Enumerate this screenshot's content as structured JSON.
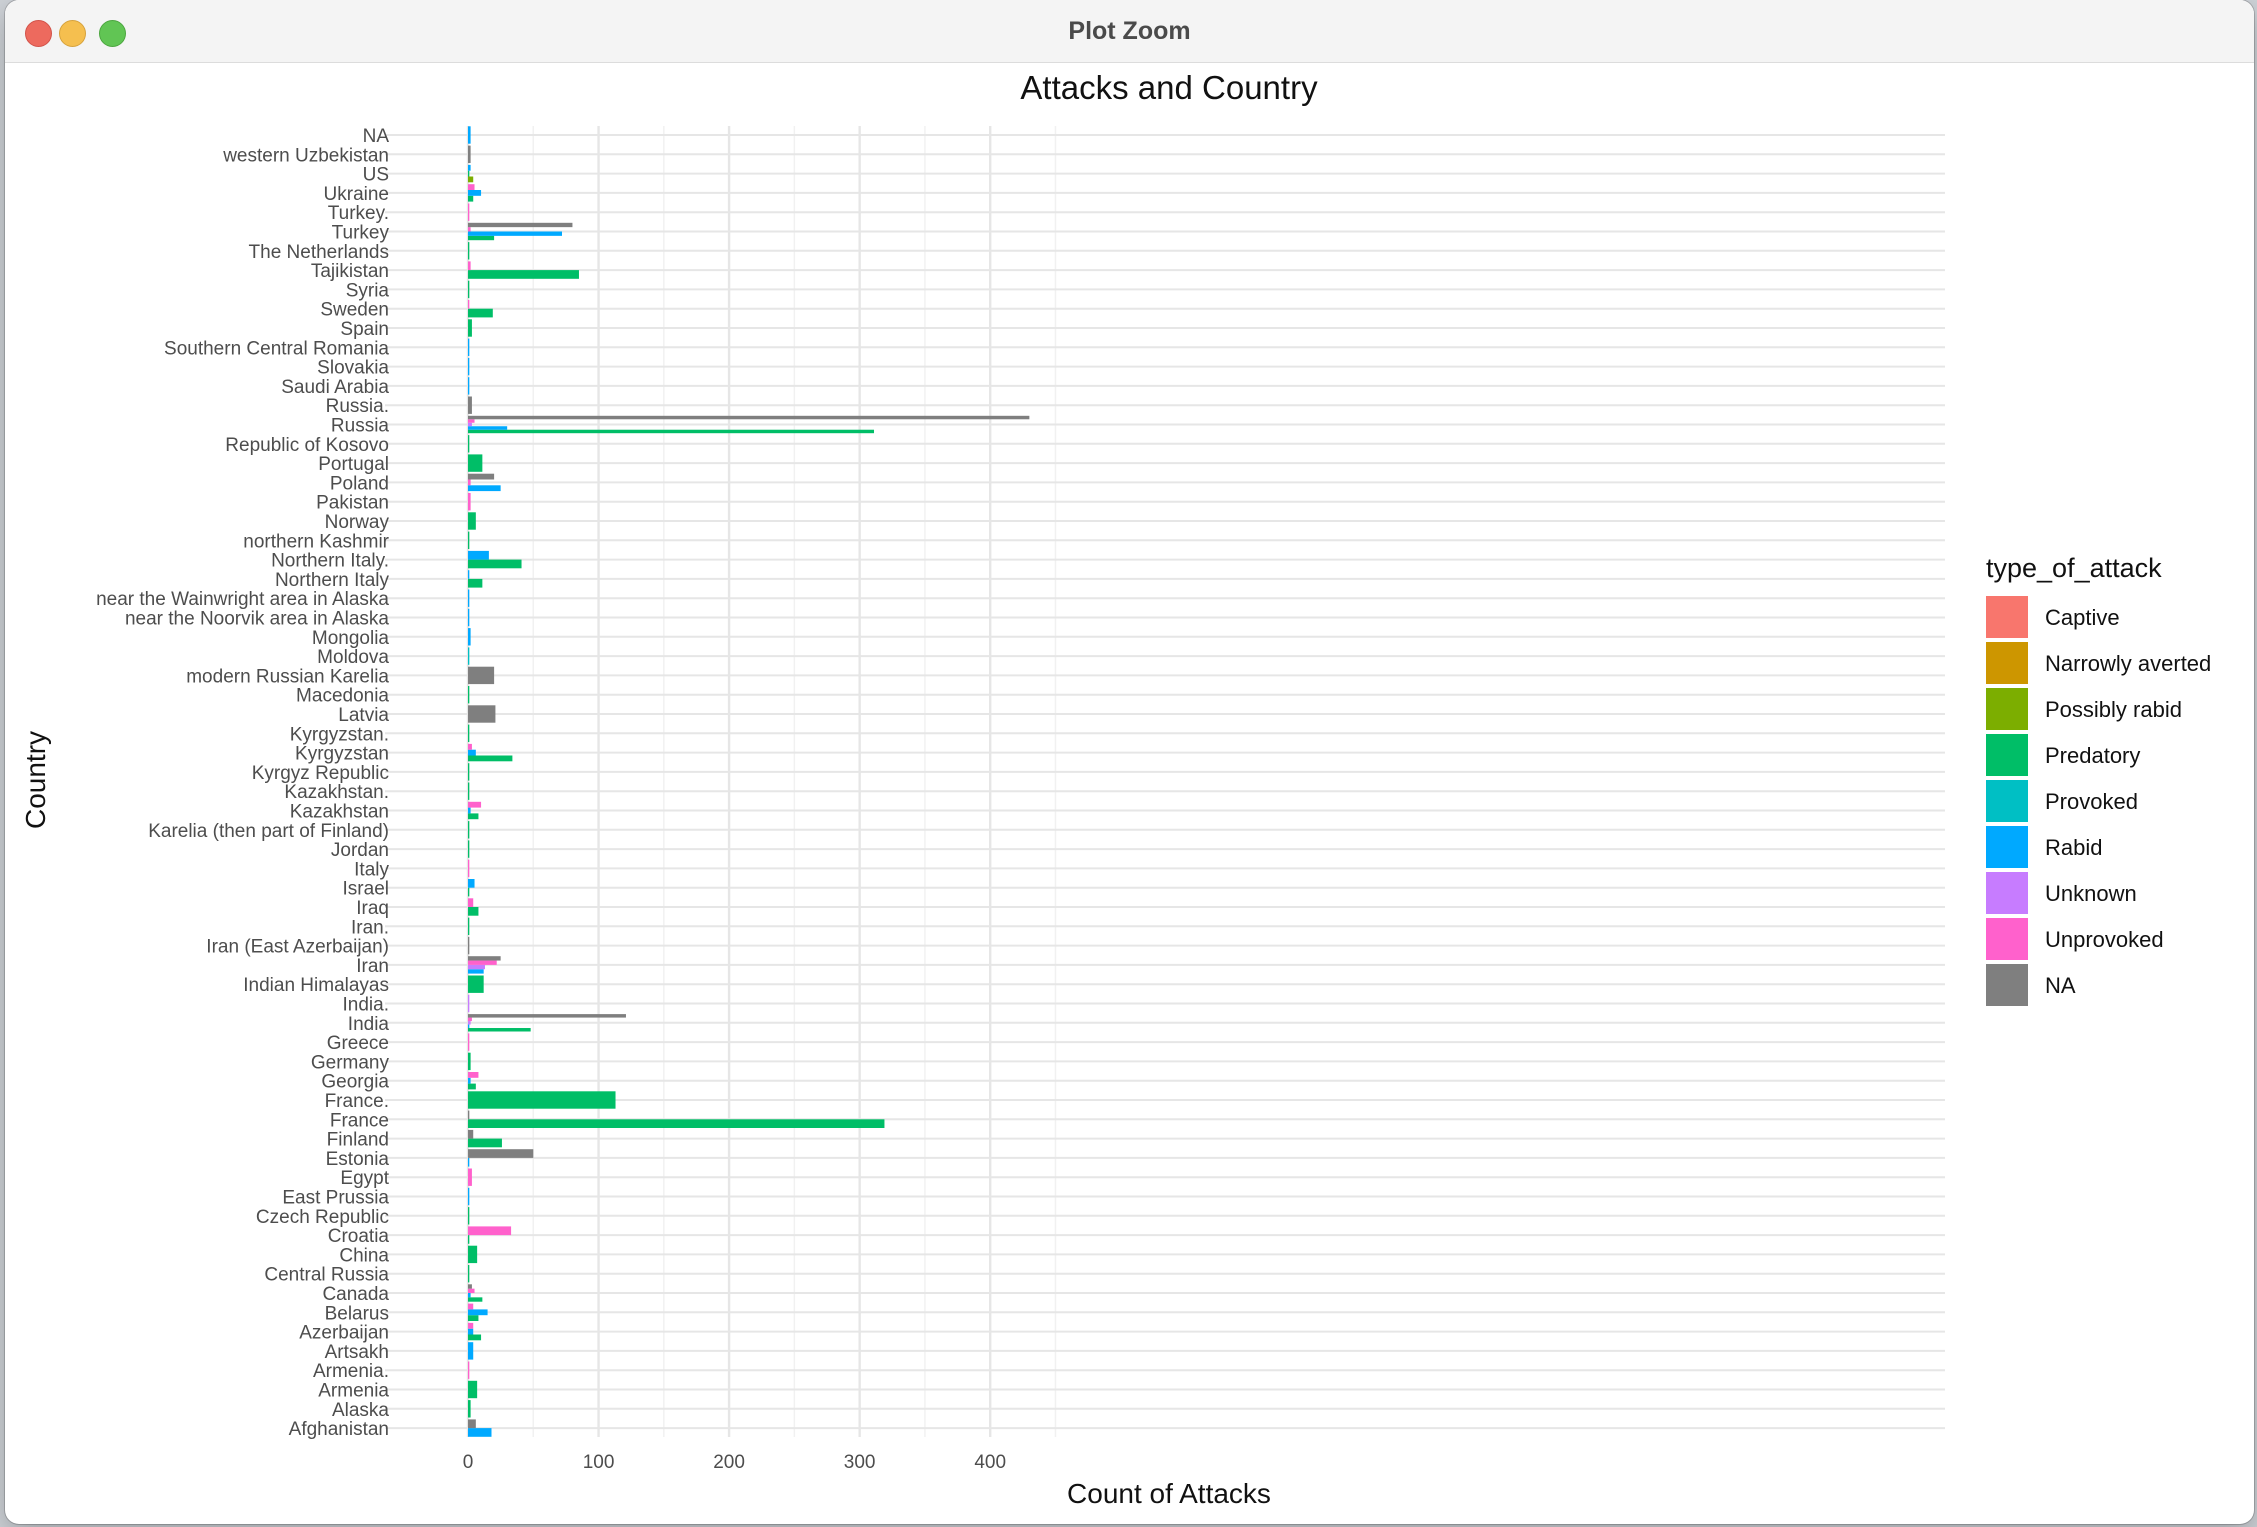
{
  "window": {
    "title": "Plot Zoom"
  },
  "colors": {
    "Captive": "#F8766D",
    "Narrowly averted": "#CD9600",
    "Possibly rabid": "#7CAE00",
    "Predatory": "#00BE67",
    "Provoked": "#00BFC4",
    "Rabid": "#00A9FF",
    "Unknown": "#C77CFF",
    "Unprovoked": "#FF61CC",
    "NA": "#7F7F7F"
  },
  "chart_data": {
    "type": "bar",
    "orientation": "horizontal",
    "position": "dodge",
    "title": "Attacks and Country",
    "xlabel": "Count of Attacks",
    "ylabel": "Country",
    "xlim": [
      0,
      450
    ],
    "xticks": [
      0,
      100,
      200,
      300,
      400
    ],
    "legend_title": "type_of_attack",
    "legend_position": "right",
    "series": [
      "Captive",
      "Narrowly averted",
      "Possibly rabid",
      "Predatory",
      "Provoked",
      "Rabid",
      "Unknown",
      "Unprovoked",
      "NA"
    ],
    "categories": [
      "Afghanistan",
      "Alaska",
      "Armenia",
      "Armenia.",
      "Artsakh",
      "Azerbaijan",
      "Belarus",
      "Canada",
      "Central Russia",
      "China",
      "Croatia",
      "Czech Republic",
      "East Prussia",
      "Egypt",
      "Estonia",
      "Finland",
      "France",
      "France.",
      "Georgia",
      "Germany",
      "Greece",
      "India",
      "India.",
      "Indian Himalayas",
      "Iran",
      "Iran (East Azerbaijan)",
      "Iran.",
      "Iraq",
      "Israel",
      "Italy",
      "Jordan",
      "Karelia (then part of Finland)",
      "Kazakhstan",
      "Kazakhstan.",
      "Kyrgyz Republic",
      "Kyrgyzstan",
      "Kyrgyzstan.",
      "Latvia",
      "Macedonia",
      "modern Russian Karelia",
      "Moldova",
      "Mongolia",
      "near the Noorvik area in Alaska",
      "near the Wainwright area in Alaska",
      "Northern Italy",
      "Northern Italy.",
      "northern Kashmir",
      "Norway",
      "Pakistan",
      "Poland",
      "Portugal",
      "Republic of Kosovo",
      "Russia",
      "Russia.",
      "Saudi Arabia",
      "Slovakia",
      "Southern Central Romania",
      "Spain",
      "Sweden",
      "Syria",
      "Tajikistan",
      "The Netherlands",
      "Turkey",
      "Turkey.",
      "Ukraine",
      "US",
      "western Uzbekistan",
      "NA"
    ],
    "bars": [
      {
        "country": "Afghanistan",
        "type": "Rabid",
        "value": 18
      },
      {
        "country": "Afghanistan",
        "type": "NA",
        "value": 6
      },
      {
        "country": "Alaska",
        "type": "Predatory",
        "value": 2
      },
      {
        "country": "Armenia",
        "type": "Predatory",
        "value": 7
      },
      {
        "country": "Armenia.",
        "type": "Unprovoked",
        "value": 1
      },
      {
        "country": "Artsakh",
        "type": "Rabid",
        "value": 4
      },
      {
        "country": "Azerbaijan",
        "type": "Predatory",
        "value": 10
      },
      {
        "country": "Azerbaijan",
        "type": "Rabid",
        "value": 4
      },
      {
        "country": "Azerbaijan",
        "type": "Unprovoked",
        "value": 4
      },
      {
        "country": "Belarus",
        "type": "Predatory",
        "value": 8
      },
      {
        "country": "Belarus",
        "type": "Rabid",
        "value": 15
      },
      {
        "country": "Belarus",
        "type": "Unprovoked",
        "value": 4
      },
      {
        "country": "Canada",
        "type": "Predatory",
        "value": 11
      },
      {
        "country": "Canada",
        "type": "Rabid",
        "value": 2
      },
      {
        "country": "Canada",
        "type": "Unprovoked",
        "value": 5
      },
      {
        "country": "Canada",
        "type": "NA",
        "value": 3
      },
      {
        "country": "Central Russia",
        "type": "Predatory",
        "value": 1
      },
      {
        "country": "China",
        "type": "Predatory",
        "value": 7
      },
      {
        "country": "Croatia",
        "type": "Predatory",
        "value": 1
      },
      {
        "country": "Croatia",
        "type": "Unprovoked",
        "value": 33
      },
      {
        "country": "Czech Republic",
        "type": "Predatory",
        "value": 1
      },
      {
        "country": "East Prussia",
        "type": "Rabid",
        "value": 1
      },
      {
        "country": "Egypt",
        "type": "Unprovoked",
        "value": 3
      },
      {
        "country": "Estonia",
        "type": "Rabid",
        "value": 1
      },
      {
        "country": "Estonia",
        "type": "NA",
        "value": 50
      },
      {
        "country": "Finland",
        "type": "Predatory",
        "value": 26
      },
      {
        "country": "Finland",
        "type": "NA",
        "value": 4
      },
      {
        "country": "France",
        "type": "Predatory",
        "value": 319
      },
      {
        "country": "France",
        "type": "NA",
        "value": 1
      },
      {
        "country": "France.",
        "type": "Predatory",
        "value": 113
      },
      {
        "country": "Georgia",
        "type": "Predatory",
        "value": 6
      },
      {
        "country": "Georgia",
        "type": "Rabid",
        "value": 2
      },
      {
        "country": "Georgia",
        "type": "Unprovoked",
        "value": 8
      },
      {
        "country": "Germany",
        "type": "Predatory",
        "value": 2
      },
      {
        "country": "Greece",
        "type": "Unprovoked",
        "value": 1
      },
      {
        "country": "India",
        "type": "Predatory",
        "value": 48
      },
      {
        "country": "India",
        "type": "Rabid",
        "value": 1
      },
      {
        "country": "India",
        "type": "Unknown",
        "value": 2
      },
      {
        "country": "India",
        "type": "Unprovoked",
        "value": 3
      },
      {
        "country": "India",
        "type": "NA",
        "value": 121
      },
      {
        "country": "India.",
        "type": "Unknown",
        "value": 1
      },
      {
        "country": "Indian Himalayas",
        "type": "Predatory",
        "value": 12
      },
      {
        "country": "Iran",
        "type": "Rabid",
        "value": 12
      },
      {
        "country": "Iran",
        "type": "Unknown",
        "value": 13
      },
      {
        "country": "Iran",
        "type": "Unprovoked",
        "value": 22
      },
      {
        "country": "Iran",
        "type": "NA",
        "value": 25
      },
      {
        "country": "Iran (East Azerbaijan)",
        "type": "NA",
        "value": 1
      },
      {
        "country": "Iran.",
        "type": "Predatory",
        "value": 1
      },
      {
        "country": "Iraq",
        "type": "Predatory",
        "value": 8
      },
      {
        "country": "Iraq",
        "type": "Unprovoked",
        "value": 4
      },
      {
        "country": "Israel",
        "type": "Predatory",
        "value": 1
      },
      {
        "country": "Israel",
        "type": "Rabid",
        "value": 5
      },
      {
        "country": "Italy",
        "type": "Unprovoked",
        "value": 1
      },
      {
        "country": "Jordan",
        "type": "Predatory",
        "value": 1
      },
      {
        "country": "Karelia (then part of Finland)",
        "type": "Predatory",
        "value": 1
      },
      {
        "country": "Kazakhstan",
        "type": "Predatory",
        "value": 8
      },
      {
        "country": "Kazakhstan",
        "type": "Rabid",
        "value": 2
      },
      {
        "country": "Kazakhstan",
        "type": "Unprovoked",
        "value": 10
      },
      {
        "country": "Kazakhstan.",
        "type": "Predatory",
        "value": 1
      },
      {
        "country": "Kyrgyz Republic",
        "type": "Predatory",
        "value": 1
      },
      {
        "country": "Kyrgyzstan",
        "type": "Predatory",
        "value": 34
      },
      {
        "country": "Kyrgyzstan",
        "type": "Rabid",
        "value": 6
      },
      {
        "country": "Kyrgyzstan",
        "type": "Unprovoked",
        "value": 3
      },
      {
        "country": "Kyrgyzstan.",
        "type": "Predatory",
        "value": 1
      },
      {
        "country": "Latvia",
        "type": "NA",
        "value": 21
      },
      {
        "country": "Macedonia",
        "type": "Predatory",
        "value": 1
      },
      {
        "country": "modern Russian Karelia",
        "type": "NA",
        "value": 20
      },
      {
        "country": "Moldova",
        "type": "Provoked",
        "value": 1
      },
      {
        "country": "Mongolia",
        "type": "Rabid",
        "value": 2
      },
      {
        "country": "near the Noorvik area in Alaska",
        "type": "Rabid",
        "value": 1
      },
      {
        "country": "near the Wainwright area in Alaska",
        "type": "Rabid",
        "value": 1
      },
      {
        "country": "Northern Italy",
        "type": "Predatory",
        "value": 11
      },
      {
        "country": "Northern Italy",
        "type": "Rabid",
        "value": 1
      },
      {
        "country": "Northern Italy.",
        "type": "Predatory",
        "value": 41
      },
      {
        "country": "Northern Italy.",
        "type": "Rabid",
        "value": 16
      },
      {
        "country": "northern Kashmir",
        "type": "Predatory",
        "value": 1
      },
      {
        "country": "Norway",
        "type": "Predatory",
        "value": 6
      },
      {
        "country": "Pakistan",
        "type": "Unprovoked",
        "value": 2
      },
      {
        "country": "Poland",
        "type": "Rabid",
        "value": 25
      },
      {
        "country": "Poland",
        "type": "Unprovoked",
        "value": 2
      },
      {
        "country": "Poland",
        "type": "NA",
        "value": 20
      },
      {
        "country": "Portugal",
        "type": "Predatory",
        "value": 11
      },
      {
        "country": "Republic of Kosovo",
        "type": "Predatory",
        "value": 1
      },
      {
        "country": "Russia",
        "type": "Predatory",
        "value": 311
      },
      {
        "country": "Russia",
        "type": "Rabid",
        "value": 30
      },
      {
        "country": "Russia",
        "type": "Unknown",
        "value": 3
      },
      {
        "country": "Russia",
        "type": "Unprovoked",
        "value": 5
      },
      {
        "country": "Russia",
        "type": "NA",
        "value": 430
      },
      {
        "country": "Russia.",
        "type": "NA",
        "value": 3
      },
      {
        "country": "Saudi Arabia",
        "type": "Rabid",
        "value": 1
      },
      {
        "country": "Slovakia",
        "type": "Rabid",
        "value": 1
      },
      {
        "country": "Southern Central Romania",
        "type": "Rabid",
        "value": 1
      },
      {
        "country": "Spain",
        "type": "Predatory",
        "value": 3
      },
      {
        "country": "Sweden",
        "type": "Predatory",
        "value": 19
      },
      {
        "country": "Sweden",
        "type": "Unprovoked",
        "value": 1
      },
      {
        "country": "Syria",
        "type": "Predatory",
        "value": 1
      },
      {
        "country": "Tajikistan",
        "type": "Predatory",
        "value": 85
      },
      {
        "country": "Tajikistan",
        "type": "Unprovoked",
        "value": 2
      },
      {
        "country": "The Netherlands",
        "type": "Predatory",
        "value": 1
      },
      {
        "country": "Turkey",
        "type": "Predatory",
        "value": 20
      },
      {
        "country": "Turkey",
        "type": "Rabid",
        "value": 72
      },
      {
        "country": "Turkey",
        "type": "Unprovoked",
        "value": 2
      },
      {
        "country": "Turkey",
        "type": "NA",
        "value": 80
      },
      {
        "country": "Turkey.",
        "type": "Unprovoked",
        "value": 1
      },
      {
        "country": "Ukraine",
        "type": "Predatory",
        "value": 4
      },
      {
        "country": "Ukraine",
        "type": "Rabid",
        "value": 10
      },
      {
        "country": "Ukraine",
        "type": "Unprovoked",
        "value": 5
      },
      {
        "country": "US",
        "type": "Possibly rabid",
        "value": 4
      },
      {
        "country": "US",
        "type": "Predatory",
        "value": 1
      },
      {
        "country": "US",
        "type": "Rabid",
        "value": 2
      },
      {
        "country": "western Uzbekistan",
        "type": "NA",
        "value": 2
      },
      {
        "country": "NA",
        "type": "Rabid",
        "value": 2
      }
    ]
  }
}
